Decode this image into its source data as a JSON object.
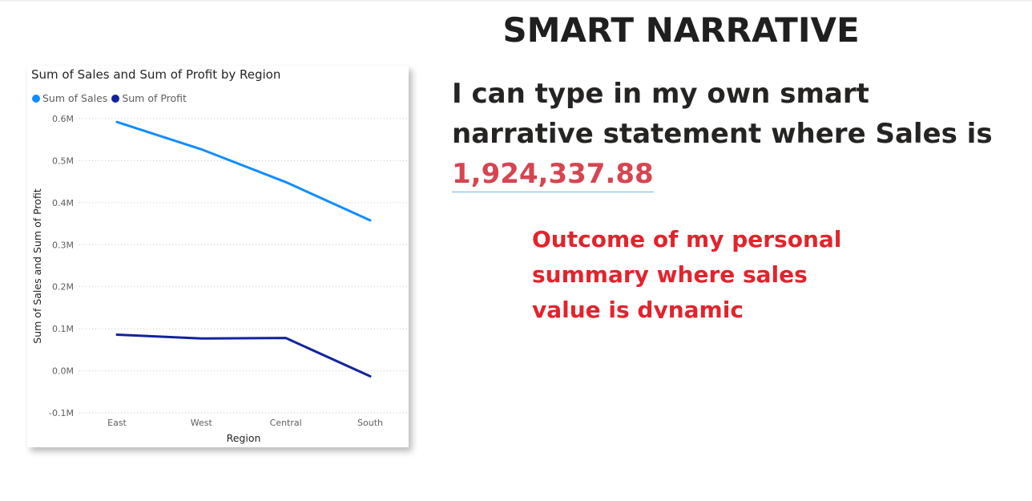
{
  "header": {
    "title": "SMART NARRATIVE"
  },
  "narrative": {
    "text": "I can type in my own smart narrative statement where Sales is",
    "value": "1,924,337.88"
  },
  "annotation": {
    "text": "Outcome of my personal summary where sales value is dynamic"
  },
  "colors": {
    "sales": "#118dff",
    "profit": "#12239e",
    "narrative_value": "#d64550",
    "annotation": "#e3232c"
  },
  "chart_data": {
    "type": "line",
    "title": "Sum of Sales and Sum of Profit by Region",
    "xlabel": "Region",
    "ylabel": "Sum of Sales and Sum of Profit",
    "categories": [
      "East",
      "West",
      "Central",
      "South"
    ],
    "series": [
      {
        "name": "Sum of Sales",
        "values": [
          592000,
          527000,
          449000,
          358000
        ]
      },
      {
        "name": "Sum of Profit",
        "values": [
          86000,
          77000,
          78000,
          -13000
        ]
      }
    ],
    "ylim": [
      -100000,
      600000
    ],
    "yticks": [
      {
        "value": 600000,
        "label": "0.6M"
      },
      {
        "value": 500000,
        "label": "0.5M"
      },
      {
        "value": 400000,
        "label": "0.4M"
      },
      {
        "value": 300000,
        "label": "0.3M"
      },
      {
        "value": 200000,
        "label": "0.2M"
      },
      {
        "value": 100000,
        "label": "0.1M"
      },
      {
        "value": 0,
        "label": "0.0M"
      },
      {
        "value": -100000,
        "label": "-0.1M"
      }
    ],
    "grid": true,
    "legend": "top-left"
  }
}
